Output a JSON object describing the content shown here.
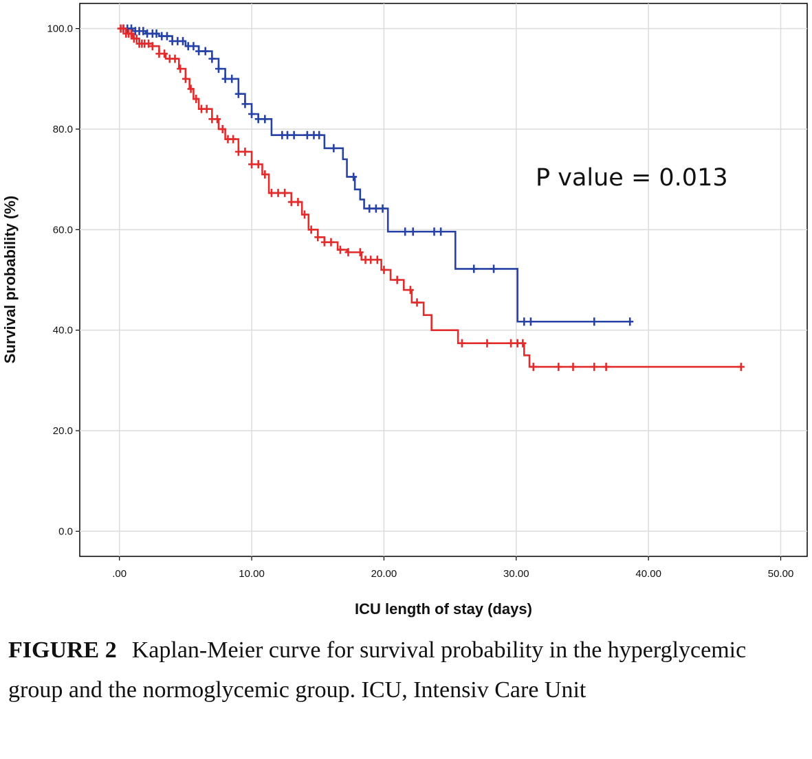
{
  "chart_data": {
    "type": "line",
    "title": "",
    "xlabel": "ICU length of stay (days)",
    "ylabel": "Survival probability (%)",
    "xlim": [
      -3,
      52
    ],
    "ylim": [
      -5,
      105
    ],
    "x_ticks": [
      0,
      10,
      20,
      30,
      40,
      50
    ],
    "x_tick_labels": [
      ".00",
      "10.00",
      "20.00",
      "30.00",
      "40.00",
      "50.00"
    ],
    "y_ticks": [
      0,
      20,
      40,
      60,
      80,
      100
    ],
    "y_tick_labels": [
      "0.0",
      "20.0",
      "40.0",
      "60.0",
      "80.0",
      "100.0"
    ],
    "grid": true,
    "annotation": "P value = 0.013",
    "series": [
      {
        "name": "normoglycemic group",
        "color": "#2742a6",
        "steps": [
          [
            0,
            100
          ],
          [
            1.0,
            99.5
          ],
          [
            2.0,
            99.0
          ],
          [
            3.0,
            98.5
          ],
          [
            4.0,
            97.5
          ],
          [
            5.0,
            96.5
          ],
          [
            6.0,
            95.5
          ],
          [
            7.0,
            94.0
          ],
          [
            7.5,
            92
          ],
          [
            8.0,
            90
          ],
          [
            9.0,
            87
          ],
          [
            9.5,
            85
          ],
          [
            10.0,
            83
          ],
          [
            10.5,
            82
          ],
          [
            11.5,
            78.8
          ],
          [
            15.5,
            76.2
          ],
          [
            16.9,
            74
          ],
          [
            17.2,
            70.5
          ],
          [
            17.8,
            68
          ],
          [
            18.2,
            66
          ],
          [
            18.5,
            64.2
          ],
          [
            20.3,
            59.6
          ],
          [
            25.4,
            52.2
          ],
          [
            30.1,
            41.7
          ],
          [
            38.6,
            41.7
          ]
        ],
        "censors": [
          0.3,
          0.6,
          0.9,
          1.2,
          1.5,
          1.8,
          2.1,
          2.5,
          2.8,
          3.2,
          3.6,
          4.0,
          4.4,
          4.8,
          5.2,
          5.6,
          6.0,
          6.5,
          7.0,
          7.5,
          8.0,
          8.5,
          9.0,
          9.5,
          10.0,
          10.5,
          11.0,
          12.3,
          12.7,
          13.2,
          14.2,
          14.7,
          15.1,
          16.2,
          17.7,
          18.9,
          19.4,
          19.9,
          21.6,
          22.2,
          23.8,
          24.3,
          26.8,
          28.3,
          30.6,
          31.1,
          35.9,
          38.6
        ]
      },
      {
        "name": "hyperglycemic group",
        "color": "#e32b2b",
        "steps": [
          [
            0,
            100
          ],
          [
            0.5,
            99
          ],
          [
            1.0,
            98
          ],
          [
            1.5,
            97
          ],
          [
            2.5,
            96.5
          ],
          [
            3.0,
            95
          ],
          [
            3.5,
            94
          ],
          [
            4.5,
            92
          ],
          [
            5.0,
            90
          ],
          [
            5.3,
            88
          ],
          [
            5.6,
            86
          ],
          [
            6.0,
            84
          ],
          [
            7.0,
            82
          ],
          [
            7.5,
            80
          ],
          [
            8.0,
            78
          ],
          [
            9.0,
            75.5
          ],
          [
            10.0,
            73
          ],
          [
            10.8,
            71
          ],
          [
            11.3,
            67.3
          ],
          [
            13.0,
            65.5
          ],
          [
            13.8,
            63
          ],
          [
            14.3,
            60
          ],
          [
            15.0,
            58.5
          ],
          [
            15.5,
            57.5
          ],
          [
            16.5,
            56
          ],
          [
            17.2,
            55.5
          ],
          [
            18.3,
            54
          ],
          [
            19.8,
            52
          ],
          [
            20.5,
            50
          ],
          [
            21.5,
            48
          ],
          [
            22.1,
            45.5
          ],
          [
            23.0,
            43
          ],
          [
            23.6,
            40
          ],
          [
            25.6,
            37.4
          ],
          [
            30.6,
            35
          ],
          [
            31.0,
            32.7
          ],
          [
            47.0,
            32.7
          ]
        ],
        "censors": [
          0.1,
          0.3,
          0.5,
          0.7,
          0.9,
          1.1,
          1.3,
          1.5,
          1.7,
          1.9,
          2.2,
          2.5,
          3.0,
          3.4,
          3.8,
          4.2,
          4.6,
          5.0,
          5.4,
          5.8,
          6.2,
          6.6,
          7.0,
          7.4,
          7.8,
          8.2,
          8.6,
          9.0,
          9.5,
          10.0,
          10.5,
          11.0,
          11.5,
          12.0,
          12.5,
          13.0,
          13.5,
          14.0,
          14.5,
          15.0,
          15.5,
          16.0,
          16.7,
          17.3,
          18.2,
          18.6,
          19.0,
          19.5,
          20.0,
          21.0,
          22.0,
          22.5,
          25.9,
          27.8,
          29.6,
          30.1,
          30.5,
          31.3,
          33.2,
          34.3,
          35.9,
          36.8,
          47.0
        ]
      }
    ]
  },
  "caption": {
    "label": "FIGURE 2",
    "text": "Kaplan-Meier curve for survival probability in the hyperglycemic group and the normoglycemic group. ICU, Intensiv Care Unit"
  }
}
